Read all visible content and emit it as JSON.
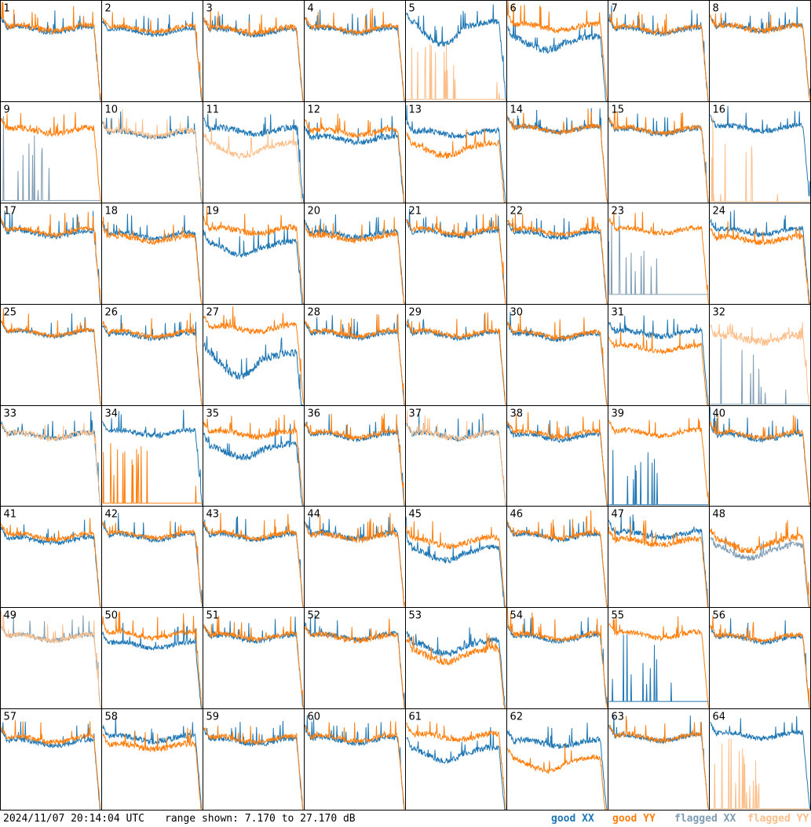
{
  "chart_data": {
    "type": "line",
    "timestamp": "2024/11/07 20:14:04 UTC",
    "range_text": "range shown: 7.170 to 27.170 dB",
    "ylim": [
      7.17,
      27.17
    ],
    "grid_rows": 8,
    "grid_cols": 8,
    "colors": {
      "good_xx": "#1f77b4",
      "good_yy": "#ff7f0e",
      "flagged_xx": "#7f9db5",
      "flagged_yy": "#fdbf8a",
      "border": "#000000"
    },
    "legend": [
      {
        "label": "good XX",
        "key": "good_xx"
      },
      {
        "label": "good YY",
        "key": "good_yy"
      },
      {
        "label": "flagged XX",
        "key": "flagged_xx"
      },
      {
        "label": "flagged YY",
        "key": "flagged_yy"
      }
    ],
    "panels": [
      {
        "id": "1",
        "xx": {
          "level": 21.5,
          "state": "good",
          "noise": 0.5
        },
        "yy": {
          "level": 21.8,
          "state": "good",
          "noise": 0.6
        },
        "dip": {
          "both": true
        }
      },
      {
        "id": "2",
        "xx": {
          "level": 21.0,
          "state": "good",
          "noise": 0.4
        },
        "yy": {
          "level": 21.6,
          "state": "good",
          "noise": 0.5
        }
      },
      {
        "id": "3",
        "xx": {
          "level": 21.0,
          "state": "good",
          "noise": 0.5
        },
        "yy": {
          "level": 21.4,
          "state": "good",
          "noise": 0.6
        }
      },
      {
        "id": "4",
        "xx": {
          "level": 21.3,
          "state": "good",
          "noise": 0.5
        },
        "yy": {
          "level": 21.6,
          "state": "good",
          "noise": 0.5
        }
      },
      {
        "id": "5",
        "xx": {
          "level": 22.5,
          "state": "good",
          "noise": 0.6,
          "bowl": 4
        },
        "yy": {
          "level": 7.5,
          "state": "flagged",
          "noise": 0.1,
          "spikes": true
        }
      },
      {
        "id": "6",
        "xx": {
          "level": 19.5,
          "state": "good",
          "noise": 0.7,
          "bowl": 2
        },
        "yy": {
          "level": 22.0,
          "state": "good",
          "noise": 0.6
        }
      },
      {
        "id": "7",
        "xx": {
          "level": 21.2,
          "state": "good",
          "noise": 0.5
        },
        "yy": {
          "level": 21.5,
          "state": "good",
          "noise": 0.5
        }
      },
      {
        "id": "8",
        "xx": {
          "level": 21.8,
          "state": "good",
          "noise": 0.5
        },
        "yy": {
          "level": 21.8,
          "state": "good",
          "noise": 0.6
        }
      },
      {
        "id": "9",
        "xx": {
          "level": 7.5,
          "state": "flagged",
          "noise": 0.2,
          "spikes": true
        },
        "yy": {
          "level": 21.5,
          "state": "good",
          "noise": 0.6
        }
      },
      {
        "id": "10",
        "xx": {
          "level": 20.8,
          "state": "good",
          "noise": 0.5
        },
        "yy": {
          "level": 21.0,
          "state": "flagged",
          "noise": 0.6
        }
      },
      {
        "id": "11",
        "xx": {
          "level": 21.5,
          "state": "good",
          "noise": 0.6
        },
        "yy": {
          "level": 18.5,
          "state": "flagged",
          "noise": 0.6,
          "bowl": 2
        }
      },
      {
        "id": "12",
        "xx": {
          "level": 19.8,
          "state": "good",
          "noise": 0.6
        },
        "yy": {
          "level": 21.2,
          "state": "good",
          "noise": 0.6
        }
      },
      {
        "id": "13",
        "xx": {
          "level": 21.0,
          "state": "good",
          "noise": 0.6
        },
        "yy": {
          "level": 18.5,
          "state": "good",
          "noise": 0.6,
          "bowl": 2
        }
      },
      {
        "id": "14",
        "xx": {
          "level": 21.8,
          "state": "good",
          "noise": 0.5
        },
        "yy": {
          "level": 21.8,
          "state": "good",
          "noise": 0.5
        }
      },
      {
        "id": "15",
        "xx": {
          "level": 21.4,
          "state": "good",
          "noise": 0.5
        },
        "yy": {
          "level": 21.6,
          "state": "good",
          "noise": 0.5
        }
      },
      {
        "id": "16",
        "xx": {
          "level": 22.0,
          "state": "good",
          "noise": 0.5
        },
        "yy": {
          "level": 7.3,
          "state": "flagged",
          "noise": 0.1,
          "spikes": true
        }
      },
      {
        "id": "17",
        "xx": {
          "level": 21.2,
          "state": "good",
          "noise": 0.5
        },
        "yy": {
          "level": 21.6,
          "state": "good",
          "noise": 0.5
        }
      },
      {
        "id": "18",
        "xx": {
          "level": 20.8,
          "state": "good",
          "noise": 0.5
        },
        "yy": {
          "level": 20.2,
          "state": "good",
          "noise": 0.6
        }
      },
      {
        "id": "19",
        "xx": {
          "level": 19.0,
          "state": "good",
          "noise": 0.6,
          "bowl": 2
        },
        "yy": {
          "level": 21.8,
          "state": "good",
          "noise": 0.6
        }
      },
      {
        "id": "20",
        "xx": {
          "level": 21.0,
          "state": "good",
          "noise": 0.6
        },
        "yy": {
          "level": 20.4,
          "state": "good",
          "noise": 0.6
        }
      },
      {
        "id": "21",
        "xx": {
          "level": 21.2,
          "state": "good",
          "noise": 0.5
        },
        "yy": {
          "level": 21.6,
          "state": "good",
          "noise": 0.5
        }
      },
      {
        "id": "22",
        "xx": {
          "level": 21.0,
          "state": "good",
          "noise": 0.5
        },
        "yy": {
          "level": 21.6,
          "state": "good",
          "noise": 0.5
        }
      },
      {
        "id": "23",
        "xx": {
          "level": 9.0,
          "state": "flagged",
          "noise": 0.3,
          "spikes": true
        },
        "yy": {
          "level": 21.8,
          "state": "good",
          "noise": 0.5
        }
      },
      {
        "id": "24",
        "xx": {
          "level": 21.6,
          "state": "good",
          "noise": 0.5
        },
        "yy": {
          "level": 20.0,
          "state": "good",
          "noise": 0.6
        }
      },
      {
        "id": "25",
        "xx": {
          "level": 21.5,
          "state": "good",
          "noise": 0.4
        },
        "yy": {
          "level": 21.6,
          "state": "good",
          "noise": 0.4
        }
      },
      {
        "id": "26",
        "xx": {
          "level": 21.0,
          "state": "good",
          "noise": 0.5
        },
        "yy": {
          "level": 21.4,
          "state": "good",
          "noise": 0.5
        }
      },
      {
        "id": "27",
        "xx": {
          "level": 17.0,
          "state": "good",
          "noise": 0.8,
          "bowl": 4
        },
        "yy": {
          "level": 22.5,
          "state": "good",
          "noise": 0.6
        }
      },
      {
        "id": "28",
        "xx": {
          "level": 21.2,
          "state": "good",
          "noise": 0.5
        },
        "yy": {
          "level": 21.5,
          "state": "good",
          "noise": 0.5
        }
      },
      {
        "id": "29",
        "xx": {
          "level": 21.2,
          "state": "good",
          "noise": 0.5
        },
        "yy": {
          "level": 21.5,
          "state": "good",
          "noise": 0.5
        }
      },
      {
        "id": "30",
        "xx": {
          "level": 21.0,
          "state": "good",
          "noise": 0.6
        },
        "yy": {
          "level": 21.2,
          "state": "good",
          "noise": 0.5
        }
      },
      {
        "id": "31",
        "xx": {
          "level": 21.5,
          "state": "good",
          "noise": 0.6
        },
        "yy": {
          "level": 18.5,
          "state": "good",
          "noise": 0.5
        }
      },
      {
        "id": "32",
        "xx": {
          "level": 7.3,
          "state": "flagged",
          "noise": 0.05,
          "spikes": true
        },
        "yy": {
          "level": 20.5,
          "state": "flagged",
          "noise": 0.9
        }
      },
      {
        "id": "33",
        "xx": {
          "level": 21.3,
          "state": "good",
          "noise": 0.5
        },
        "yy": {
          "level": 21.3,
          "state": "flagged",
          "noise": 0.6
        }
      },
      {
        "id": "34",
        "xx": {
          "level": 21.8,
          "state": "good",
          "noise": 0.5
        },
        "yy": {
          "level": 7.6,
          "state": "good",
          "noise": 0.2,
          "spikes": true
        }
      },
      {
        "id": "35",
        "xx": {
          "level": 19.0,
          "state": "good",
          "noise": 0.7,
          "bowl": 2
        },
        "yy": {
          "level": 21.6,
          "state": "good",
          "noise": 0.6
        }
      },
      {
        "id": "36",
        "xx": {
          "level": 21.2,
          "state": "good",
          "noise": 0.5
        },
        "yy": {
          "level": 21.5,
          "state": "good",
          "noise": 0.5
        }
      },
      {
        "id": "37",
        "xx": {
          "level": 21.3,
          "state": "good",
          "noise": 0.5
        },
        "yy": {
          "level": 21.3,
          "state": "flagged",
          "noise": 0.6
        }
      },
      {
        "id": "38",
        "xx": {
          "level": 21.0,
          "state": "good",
          "noise": 0.5
        },
        "yy": {
          "level": 21.6,
          "state": "good",
          "noise": 0.5
        }
      },
      {
        "id": "39",
        "xx": {
          "level": 7.3,
          "state": "good",
          "noise": 0.1,
          "spikes": true
        },
        "yy": {
          "level": 21.8,
          "state": "good",
          "noise": 0.5
        }
      },
      {
        "id": "40",
        "xx": {
          "level": 21.0,
          "state": "good",
          "noise": 0.5
        },
        "yy": {
          "level": 21.4,
          "state": "good",
          "noise": 0.5
        }
      },
      {
        "id": "41",
        "xx": {
          "level": 20.5,
          "state": "good",
          "noise": 0.5
        },
        "yy": {
          "level": 21.2,
          "state": "good",
          "noise": 0.5
        }
      },
      {
        "id": "42",
        "xx": {
          "level": 21.2,
          "state": "good",
          "noise": 0.5
        },
        "yy": {
          "level": 21.5,
          "state": "good",
          "noise": 0.5
        }
      },
      {
        "id": "43",
        "xx": {
          "level": 21.2,
          "state": "good",
          "noise": 0.5
        },
        "yy": {
          "level": 21.5,
          "state": "good",
          "noise": 0.5
        }
      },
      {
        "id": "44",
        "xx": {
          "level": 21.4,
          "state": "good",
          "noise": 0.6
        },
        "yy": {
          "level": 21.2,
          "state": "good",
          "noise": 0.6
        }
      },
      {
        "id": "45",
        "xx": {
          "level": 18.5,
          "state": "good",
          "noise": 0.6,
          "bowl": 2
        },
        "yy": {
          "level": 20.5,
          "state": "good",
          "noise": 0.6,
          "bowl": 1
        }
      },
      {
        "id": "46",
        "xx": {
          "level": 21.2,
          "state": "good",
          "noise": 0.5
        },
        "yy": {
          "level": 21.5,
          "state": "good",
          "noise": 0.5
        }
      },
      {
        "id": "47",
        "xx": {
          "level": 21.6,
          "state": "good",
          "noise": 0.6
        },
        "yy": {
          "level": 20.2,
          "state": "good",
          "noise": 0.6
        }
      },
      {
        "id": "48",
        "xx": {
          "level": 19.0,
          "state": "flagged",
          "noise": 0.6,
          "bowl": 2
        },
        "yy": {
          "level": 20.5,
          "state": "good",
          "noise": 0.7,
          "bowl": 2
        }
      },
      {
        "id": "49",
        "xx": {
          "level": 21.3,
          "state": "flagged",
          "noise": 0.5
        },
        "yy": {
          "level": 21.3,
          "state": "flagged",
          "noise": 0.5
        }
      },
      {
        "id": "50",
        "xx": {
          "level": 19.8,
          "state": "good",
          "noise": 0.5
        },
        "yy": {
          "level": 21.8,
          "state": "good",
          "noise": 0.5
        }
      },
      {
        "id": "51",
        "xx": {
          "level": 21.2,
          "state": "good",
          "noise": 0.5
        },
        "yy": {
          "level": 21.5,
          "state": "good",
          "noise": 0.5
        }
      },
      {
        "id": "52",
        "xx": {
          "level": 21.5,
          "state": "good",
          "noise": 0.5
        },
        "yy": {
          "level": 21.3,
          "state": "good",
          "noise": 0.6
        }
      },
      {
        "id": "53",
        "xx": {
          "level": 20.2,
          "state": "good",
          "noise": 0.7,
          "bowl": 2
        },
        "yy": {
          "level": 18.5,
          "state": "good",
          "noise": 0.7,
          "bowl": 2
        }
      },
      {
        "id": "54",
        "xx": {
          "level": 21.2,
          "state": "good",
          "noise": 0.5
        },
        "yy": {
          "level": 21.5,
          "state": "good",
          "noise": 0.5
        }
      },
      {
        "id": "55",
        "xx": {
          "level": 8.5,
          "state": "good",
          "noise": 0.3,
          "spikes": true
        },
        "yy": {
          "level": 21.8,
          "state": "good",
          "noise": 0.5
        }
      },
      {
        "id": "56",
        "xx": {
          "level": 21.0,
          "state": "good",
          "noise": 0.5
        },
        "yy": {
          "level": 21.3,
          "state": "good",
          "noise": 0.5
        }
      },
      {
        "id": "57",
        "xx": {
          "level": 20.5,
          "state": "good",
          "noise": 0.5
        },
        "yy": {
          "level": 21.2,
          "state": "good",
          "noise": 0.5
        }
      },
      {
        "id": "58",
        "xx": {
          "level": 21.4,
          "state": "good",
          "noise": 0.6
        },
        "yy": {
          "level": 19.8,
          "state": "good",
          "noise": 0.6
        }
      },
      {
        "id": "59",
        "xx": {
          "level": 20.8,
          "state": "good",
          "noise": 0.5
        },
        "yy": {
          "level": 21.2,
          "state": "good",
          "noise": 0.5
        }
      },
      {
        "id": "60",
        "xx": {
          "level": 21.0,
          "state": "good",
          "noise": 0.5
        },
        "yy": {
          "level": 21.4,
          "state": "good",
          "noise": 0.5
        }
      },
      {
        "id": "61",
        "xx": {
          "level": 19.0,
          "state": "good",
          "noise": 0.6,
          "bowl": 2
        },
        "yy": {
          "level": 21.8,
          "state": "good",
          "noise": 0.6
        }
      },
      {
        "id": "62",
        "xx": {
          "level": 20.5,
          "state": "good",
          "noise": 0.6
        },
        "yy": {
          "level": 17.0,
          "state": "good",
          "noise": 0.5,
          "bowl": 2
        }
      },
      {
        "id": "63",
        "xx": {
          "level": 21.5,
          "state": "good",
          "noise": 0.5
        },
        "yy": {
          "level": 21.6,
          "state": "good",
          "noise": 0.5
        }
      },
      {
        "id": "64",
        "xx": {
          "level": 22.0,
          "state": "good",
          "noise": 0.5
        },
        "yy": {
          "level": 7.3,
          "state": "flagged",
          "noise": 0.1,
          "spikes": true
        }
      }
    ]
  }
}
